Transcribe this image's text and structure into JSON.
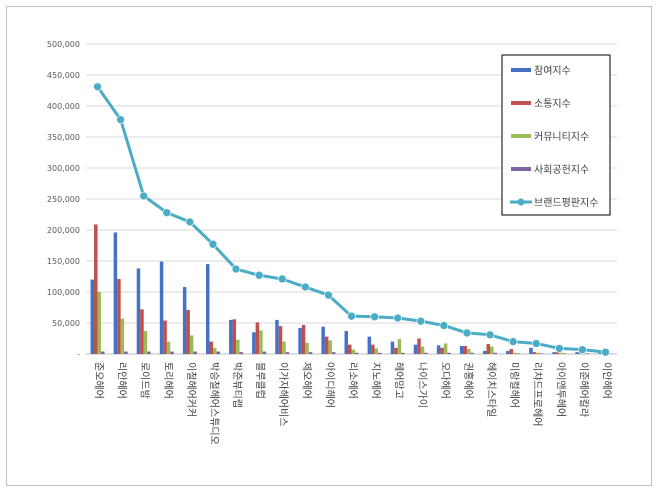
{
  "chart_data": {
    "type": "bar",
    "title": "",
    "xlabel": "",
    "ylabel": "",
    "ylim": [
      0,
      500000
    ],
    "yticks": [
      "-",
      "50,000",
      "100,000",
      "150,000",
      "200,000",
      "250,000",
      "300,000",
      "350,000",
      "400,000",
      "450,000",
      "500,000"
    ],
    "grid": true,
    "legend_position": "right",
    "categories": [
      "준오헤어",
      "리안헤어",
      "로이드밤",
      "토리헤어",
      "이철헤어커커",
      "박승철헤어스튜디오",
      "박준뷰티랩",
      "블루클럽",
      "이가자헤어비스",
      "제오헤어",
      "아이디헤어",
      "리소헤어",
      "지노헤어",
      "헤어망고",
      "나이스가이",
      "오다헤어",
      "권홍헤어",
      "헤이치스타일",
      "미랑컬헤어",
      "리챠드프로헤어",
      "아이앤투헤어",
      "이준헤어칼라",
      "이안헤어"
    ],
    "series": [
      {
        "name": "참여지수",
        "kind": "bar",
        "color": "#4472c4",
        "values": [
          120000,
          196000,
          138000,
          149000,
          108000,
          145000,
          55000,
          35000,
          55000,
          42000,
          44000,
          37000,
          28000,
          20000,
          15000,
          14000,
          13000,
          5000,
          5000,
          10000,
          3000,
          3000,
          1500
        ]
      },
      {
        "name": "소통지수",
        "kind": "bar",
        "color": "#c0504d",
        "values": [
          209000,
          121000,
          72000,
          54000,
          71000,
          20000,
          56000,
          51000,
          45000,
          47000,
          28000,
          15000,
          15000,
          10000,
          25000,
          10000,
          13000,
          16000,
          8000,
          3000,
          3000,
          2000,
          1000
        ]
      },
      {
        "name": "커뮤니티지수",
        "kind": "bar",
        "color": "#9bbb59",
        "values": [
          100000,
          57000,
          37000,
          20000,
          30000,
          10000,
          23000,
          38000,
          20000,
          18000,
          22000,
          7000,
          9000,
          24000,
          12000,
          17000,
          8000,
          12000,
          2000,
          2000,
          2000,
          2000,
          500
        ]
      },
      {
        "name": "사회공헌지수",
        "kind": "bar",
        "color": "#8064a2",
        "values": [
          4000,
          4000,
          4000,
          4000,
          4000,
          4000,
          3000,
          4000,
          3000,
          3000,
          3000,
          2000,
          2000,
          2000,
          2000,
          2000,
          2000,
          2000,
          1000,
          1000,
          1000,
          1000,
          500
        ]
      },
      {
        "name": "브랜드평판지수",
        "kind": "line",
        "color": "#4bacc6",
        "values": [
          431000,
          378000,
          255000,
          228000,
          213000,
          177000,
          137000,
          127000,
          121000,
          108000,
          95000,
          61000,
          60000,
          58000,
          53000,
          46000,
          34000,
          31000,
          20000,
          17000,
          9000,
          7000,
          3000
        ]
      }
    ]
  }
}
